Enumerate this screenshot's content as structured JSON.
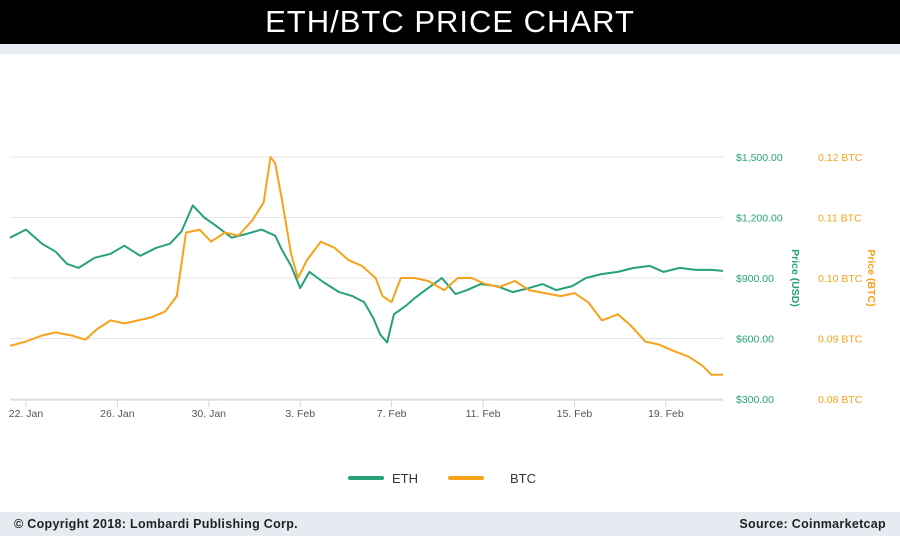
{
  "header": {
    "title": "ETH/BTC PRICE CHART"
  },
  "footer": {
    "copyright": "© Copyright 2018: Lombardi Publishing Corp.",
    "source": "Source: Coinmarketcap"
  },
  "colors": {
    "eth": "#26a17b",
    "btc": "#f7a21b",
    "grid": "#e6e6e6"
  },
  "chart_data": {
    "type": "line",
    "x_tick_labels": [
      "22. Jan",
      "26. Jan",
      "30. Jan",
      "3. Feb",
      "7. Feb",
      "11. Feb",
      "15. Feb",
      "19. Feb"
    ],
    "x_tick_days": [
      1,
      5,
      9,
      13,
      17,
      21,
      25,
      29
    ],
    "x_range_days": [
      0.3,
      31.5
    ],
    "y_left": {
      "title": "Price (USD)",
      "tick_labels": [
        "$1,500.00",
        "$1,200.00",
        "$900.00",
        "$600.00",
        "$300.00"
      ],
      "ticks": [
        1500,
        1200,
        900,
        600,
        300
      ],
      "range": [
        300,
        1500
      ]
    },
    "y_right": {
      "title": "Price (BTC)",
      "tick_labels": [
        "0.12 BTC",
        "0.11 BTC",
        "0.10 BTC",
        "0.09 BTC",
        "0.08 BTC"
      ],
      "ticks": [
        0.12,
        0.11,
        0.1,
        0.09,
        0.08
      ],
      "range": [
        0.08,
        0.12
      ]
    },
    "legend": [
      "ETH",
      "BTC"
    ],
    "legend_position": "bottom-center",
    "grid": true,
    "series": [
      {
        "name": "ETH",
        "axis": "left",
        "points": [
          [
            0.3,
            1100
          ],
          [
            1.0,
            1140
          ],
          [
            1.7,
            1070
          ],
          [
            2.3,
            1030
          ],
          [
            2.8,
            970
          ],
          [
            3.3,
            950
          ],
          [
            4.0,
            1000
          ],
          [
            4.7,
            1020
          ],
          [
            5.3,
            1060
          ],
          [
            6.0,
            1010
          ],
          [
            6.7,
            1050
          ],
          [
            7.3,
            1070
          ],
          [
            7.8,
            1130
          ],
          [
            8.3,
            1260
          ],
          [
            8.8,
            1200
          ],
          [
            9.3,
            1160
          ],
          [
            10.0,
            1100
          ],
          [
            10.7,
            1120
          ],
          [
            11.3,
            1140
          ],
          [
            11.9,
            1110
          ],
          [
            12.2,
            1040
          ],
          [
            12.6,
            960
          ],
          [
            13.0,
            850
          ],
          [
            13.4,
            930
          ],
          [
            14.0,
            880
          ],
          [
            14.7,
            830
          ],
          [
            15.3,
            810
          ],
          [
            15.8,
            780
          ],
          [
            16.2,
            700
          ],
          [
            16.5,
            620
          ],
          [
            16.8,
            580
          ],
          [
            17.1,
            720
          ],
          [
            17.6,
            760
          ],
          [
            18.0,
            800
          ],
          [
            18.6,
            850
          ],
          [
            19.2,
            900
          ],
          [
            19.8,
            820
          ],
          [
            20.3,
            840
          ],
          [
            20.9,
            870
          ],
          [
            21.6,
            860
          ],
          [
            22.3,
            830
          ],
          [
            23.0,
            850
          ],
          [
            23.6,
            870
          ],
          [
            24.2,
            840
          ],
          [
            24.9,
            860
          ],
          [
            25.5,
            900
          ],
          [
            26.2,
            920
          ],
          [
            26.9,
            930
          ],
          [
            27.6,
            950
          ],
          [
            28.3,
            960
          ],
          [
            28.9,
            930
          ],
          [
            29.6,
            950
          ],
          [
            30.3,
            940
          ],
          [
            31.0,
            940
          ],
          [
            31.5,
            935
          ]
        ]
      },
      {
        "name": "BTC",
        "axis": "right",
        "points": [
          [
            0.3,
            0.0888
          ],
          [
            1.0,
            0.0895
          ],
          [
            1.7,
            0.0905
          ],
          [
            2.3,
            0.091
          ],
          [
            3.0,
            0.0905
          ],
          [
            3.6,
            0.0898
          ],
          [
            4.1,
            0.0915
          ],
          [
            4.7,
            0.093
          ],
          [
            5.3,
            0.0925
          ],
          [
            5.9,
            0.093
          ],
          [
            6.5,
            0.0935
          ],
          [
            7.1,
            0.0945
          ],
          [
            7.6,
            0.097
          ],
          [
            8.0,
            0.1075
          ],
          [
            8.6,
            0.108
          ],
          [
            9.1,
            0.106
          ],
          [
            9.7,
            0.1075
          ],
          [
            10.3,
            0.107
          ],
          [
            10.9,
            0.1095
          ],
          [
            11.4,
            0.1125
          ],
          [
            11.7,
            0.12
          ],
          [
            11.9,
            0.119
          ],
          [
            12.2,
            0.113
          ],
          [
            12.6,
            0.104
          ],
          [
            12.9,
            0.1
          ],
          [
            13.3,
            0.103
          ],
          [
            13.9,
            0.106
          ],
          [
            14.5,
            0.105
          ],
          [
            15.1,
            0.103
          ],
          [
            15.7,
            0.102
          ],
          [
            16.3,
            0.1
          ],
          [
            16.6,
            0.097
          ],
          [
            17.0,
            0.096
          ],
          [
            17.4,
            0.1
          ],
          [
            18.0,
            0.1
          ],
          [
            18.6,
            0.0995
          ],
          [
            19.3,
            0.098
          ],
          [
            19.9,
            0.1
          ],
          [
            20.5,
            0.1
          ],
          [
            21.1,
            0.099
          ],
          [
            21.7,
            0.0985
          ],
          [
            22.4,
            0.0995
          ],
          [
            23.0,
            0.098
          ],
          [
            23.7,
            0.0975
          ],
          [
            24.4,
            0.097
          ],
          [
            25.0,
            0.0975
          ],
          [
            25.6,
            0.096
          ],
          [
            26.2,
            0.093
          ],
          [
            26.9,
            0.094
          ],
          [
            27.5,
            0.092
          ],
          [
            28.1,
            0.0895
          ],
          [
            28.7,
            0.089
          ],
          [
            29.3,
            0.088
          ],
          [
            30.0,
            0.087
          ],
          [
            30.6,
            0.0855
          ],
          [
            31.0,
            0.084
          ],
          [
            31.5,
            0.084
          ]
        ]
      }
    ]
  }
}
